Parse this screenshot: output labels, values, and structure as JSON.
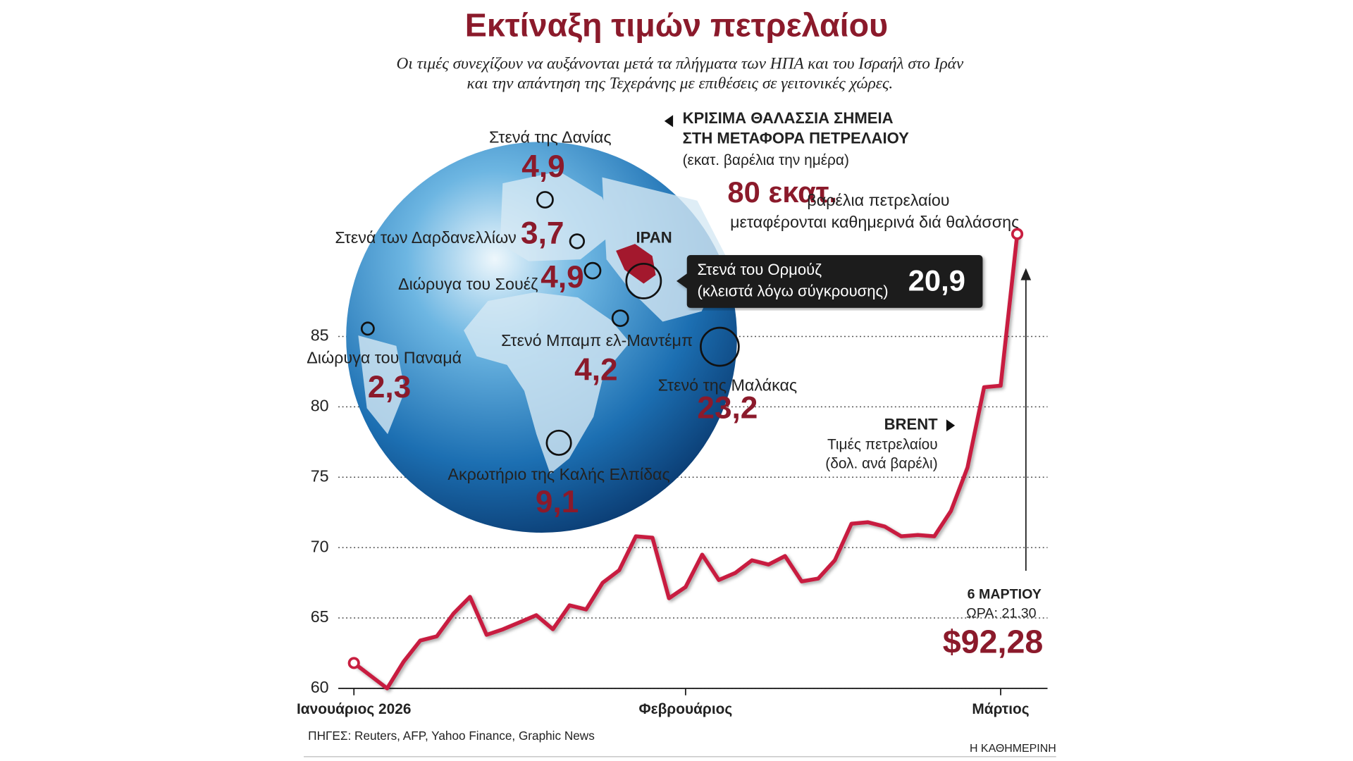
{
  "title": "Εκτίναξη τιμών πετρελαίου",
  "subtitle": [
    "Οι τιμές συνεχίζουν να αυξάνονται μετά τα πλήγματα των ΗΠΑ και του Ισραήλ στο Ιράν",
    "και την απάντηση της Τεχεράνης με επιθέσεις σε γειτονικές χώρες."
  ],
  "globe": {
    "heading": [
      "ΚΡΙΣΙΜΑ ΘΑΛΑΣΣΙΑ ΣΗΜΕΙΑ",
      "ΣΤΗ ΜΕΤΑΦΟΡΑ ΠΕΤΡΕΛΑΙΟΥ"
    ],
    "unit": "(εκατ. βαρέλια την ημέρα)",
    "total": {
      "value": "80 εκατ.",
      "text": [
        "βαρέλια πετρελαίου",
        "μεταφέρονται καθημερινά διά θαλάσσης"
      ]
    },
    "country": "ΙΡΑΝ",
    "chokepoints": [
      {
        "name": "Στενά της Δανίας",
        "value": "4,9"
      },
      {
        "name": "Στενά των Δαρδανελλίων",
        "value": "3,7"
      },
      {
        "name": "Διώρυγα του Σουέζ",
        "value": "4,9"
      },
      {
        "name": "Στενά του Ορμούζ",
        "note": "(κλειστά λόγω σύγκρουσης)",
        "value": "20,9"
      },
      {
        "name": "Στενό Μπαμπ ελ-Μαντέμπ",
        "value": "4,2"
      },
      {
        "name": "Διώρυγα του Παναμά",
        "value": "2,3"
      },
      {
        "name": "Στενό της Μαλάκας",
        "value": "23,2"
      },
      {
        "name": "Ακρωτήριο της Καλής Ελπίδας",
        "value": "9,1"
      }
    ]
  },
  "chart_data": {
    "type": "line",
    "series_name": "BRENT",
    "y_label": [
      "Τιμές πετρελαίου",
      "(δολ. ανά βαρέλι)"
    ],
    "color": "#c81f40",
    "ylim": [
      60,
      92.5
    ],
    "yticks": [
      60,
      65,
      70,
      75,
      80,
      85
    ],
    "grid": true,
    "categories": [
      "Ιανουάριος 2026",
      null,
      null,
      null,
      null,
      null,
      null,
      null,
      null,
      null,
      null,
      null,
      null,
      null,
      null,
      null,
      null,
      null,
      null,
      null,
      "Φεβρουάριος",
      null,
      null,
      null,
      null,
      null,
      null,
      null,
      null,
      null,
      null,
      null,
      null,
      null,
      null,
      null,
      null,
      null,
      null,
      "Μάρτιος",
      null
    ],
    "values": [
      61.8,
      60.9,
      60.0,
      61.9,
      63.4,
      63.7,
      65.3,
      66.5,
      63.8,
      64.2,
      64.7,
      65.2,
      64.2,
      65.9,
      65.6,
      67.5,
      68.4,
      70.8,
      70.7,
      66.4,
      67.2,
      69.5,
      67.7,
      68.2,
      69.1,
      68.8,
      69.4,
      67.6,
      67.8,
      69.1,
      71.7,
      71.8,
      71.5,
      70.8,
      70.9,
      70.8,
      72.6,
      75.7,
      81.4,
      81.5,
      92.28
    ],
    "value_labels": [
      null,
      null,
      null,
      null,
      null,
      null,
      null,
      null,
      null,
      null,
      null,
      null,
      null,
      null,
      null,
      null,
      null,
      null,
      null,
      null,
      null,
      null,
      null,
      null,
      null,
      null,
      null,
      null,
      null,
      null,
      null,
      null,
      null,
      null,
      null,
      null,
      null,
      null,
      null,
      null,
      "$92,28"
    ],
    "annotation": [
      "6 ΜΑΡΤΙΟΥ",
      "ΩΡΑ: 21.30"
    ]
  },
  "footer": {
    "sources": "ΠΗΓΕΣ: Reuters, AFP, Yahoo Finance, Graphic News",
    "brand": "Η ΚΑΘΗΜΕΡΙΝΗ"
  }
}
